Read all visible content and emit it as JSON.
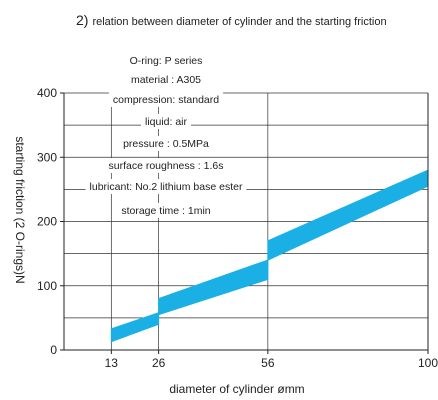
{
  "title": {
    "number": "2)",
    "text": "relation between diameter of cylinder and the starting friction"
  },
  "conditions": [
    "O-ring: P series",
    "material : A305",
    "compression: standard",
    "liquid: air",
    "pressure : 0.5MPa",
    "surface roughness : 1.6s",
    "lubricant: No.2 lithium base ester",
    "storage time : 1min"
  ],
  "chart_data": {
    "type": "area",
    "title": "relation between diameter of cylinder and the starting friction",
    "xlabel": "diameter of cylinder ømm",
    "ylabel": "starting friction (2 O-rings)N",
    "x_ticks": [
      "13",
      "26",
      "56",
      "100"
    ],
    "y_ticks": [
      "0",
      "100",
      "200",
      "300",
      "400"
    ],
    "xlim": [
      0,
      100
    ],
    "ylim": [
      0,
      400
    ],
    "grid": true,
    "band_color": "#1ab0e6",
    "series": [
      {
        "x": [
          13,
          26
        ],
        "low": [
          13,
          40
        ],
        "high": [
          33,
          58
        ]
      },
      {
        "x": [
          26,
          56
        ],
        "low": [
          55,
          110
        ],
        "high": [
          80,
          140
        ]
      },
      {
        "x": [
          56,
          100
        ],
        "low": [
          140,
          255
        ],
        "high": [
          170,
          280
        ]
      }
    ]
  }
}
